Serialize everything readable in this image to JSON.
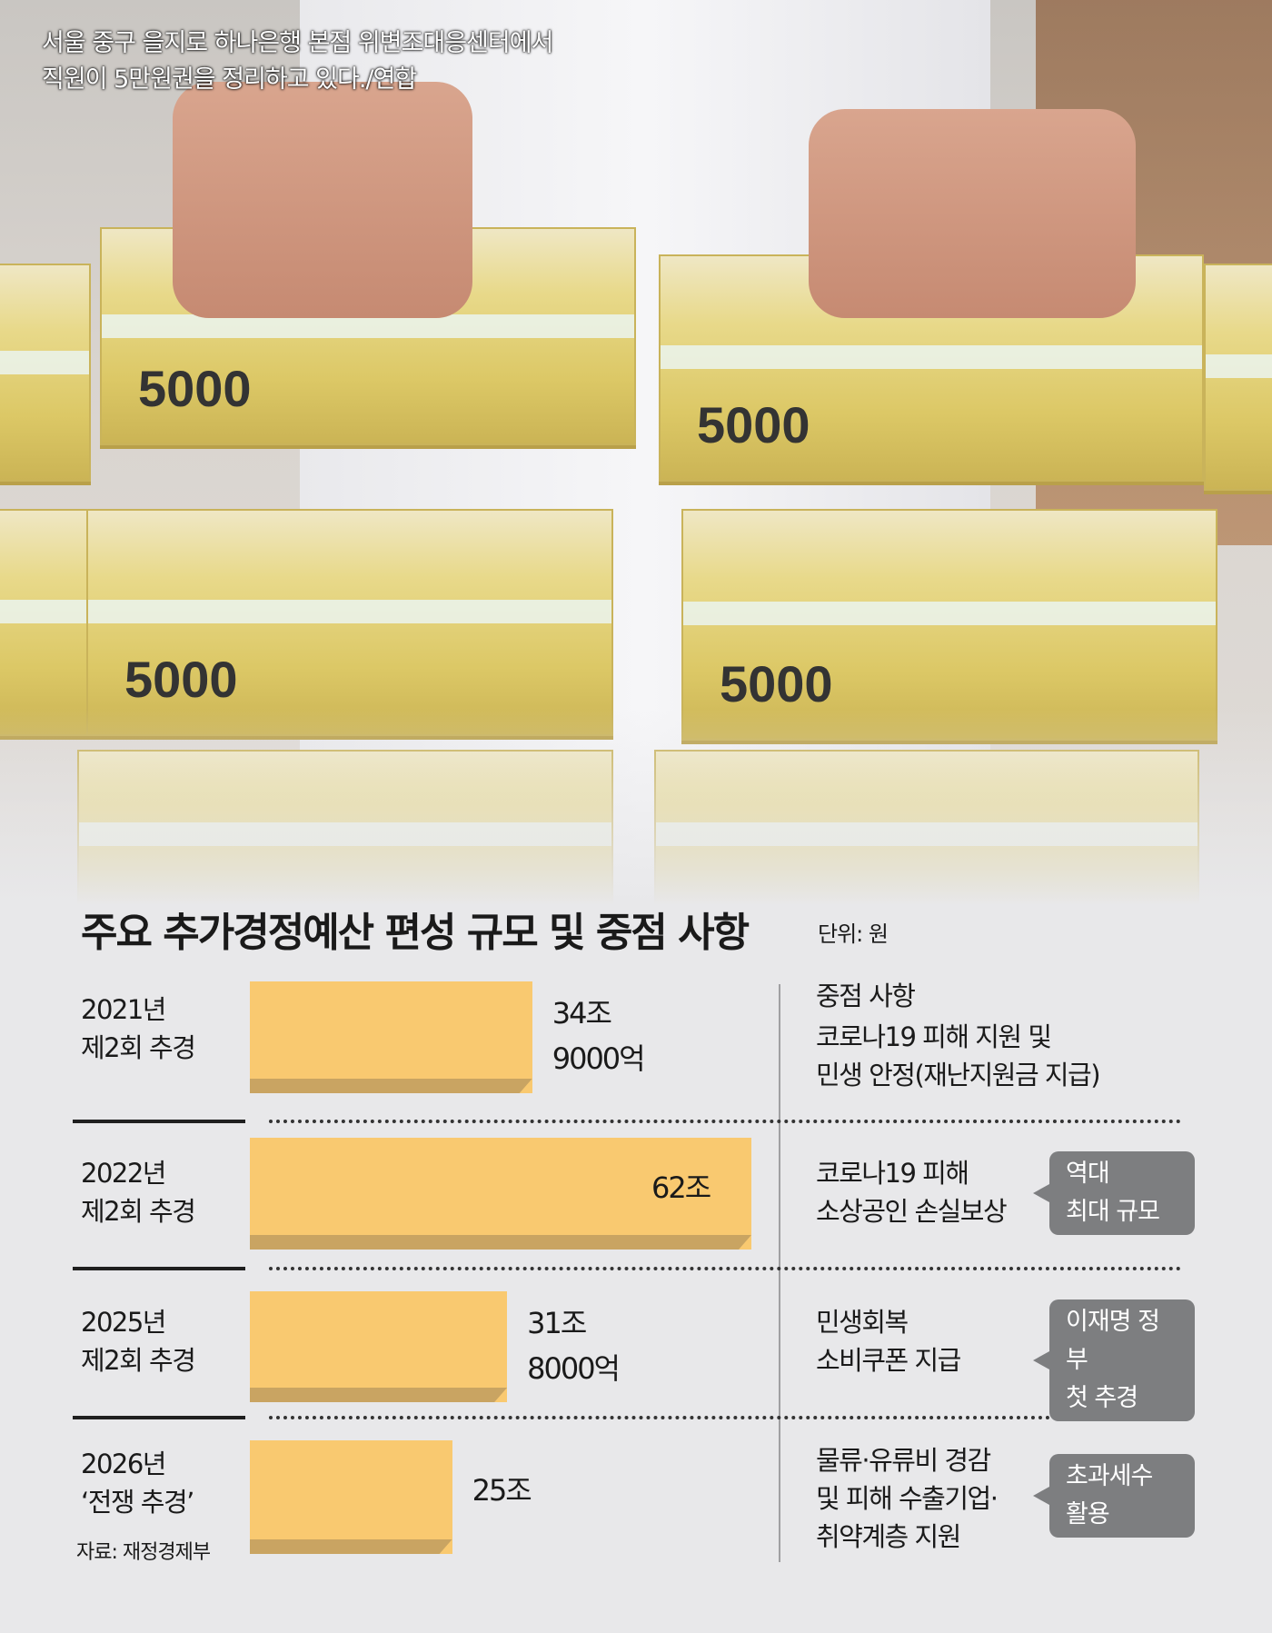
{
  "photo": {
    "caption_lines": [
      "서울 중구 을지로 하나은행 본점 위변조대응센터에서",
      "직원이 5만원권을 정리하고 있다./연합"
    ],
    "bill_label": "5000"
  },
  "chart_data": {
    "type": "bar",
    "orientation": "horizontal",
    "title": "주요 추가경정예산 편성 규모 및 중점 사항",
    "unit": "단위: 원",
    "source": "자료: 재정경제부",
    "notes_header": "중점 사항",
    "categories": [
      {
        "line1": "2021년",
        "line2": "제2회 추경"
      },
      {
        "line1": "2022년",
        "line2": "제2회 추경"
      },
      {
        "line1": "2025년",
        "line2": "제2회 추경"
      },
      {
        "line1": "2026년",
        "line2": "‘전쟁 추경’"
      }
    ],
    "values": [
      34.9,
      62,
      31.8,
      25
    ],
    "value_unit": "조",
    "data_labels": [
      [
        "34조",
        "9000억"
      ],
      [
        "62조"
      ],
      [
        "31조",
        "8000억"
      ],
      [
        "25조"
      ]
    ],
    "notes": [
      {
        "lines": [
          "코로나19 피해 지원 및",
          "민생 안정(재난지원금 지급)"
        ],
        "callout": []
      },
      {
        "lines": [
          "코로나19 피해",
          "소상공인 손실보상"
        ],
        "callout": [
          "역대",
          "최대 규모"
        ]
      },
      {
        "lines": [
          "민생회복",
          "소비쿠폰 지급"
        ],
        "callout": [
          "이재명 정부",
          "첫 추경"
        ]
      },
      {
        "lines": [
          "물류·유류비 경감",
          "및 피해 수출기업·",
          "취약계층 지원"
        ],
        "callout": [
          "초과세수",
          "활용"
        ]
      }
    ],
    "colors": {
      "bar": "#f9c970",
      "bar_shadow": "#c9a462",
      "callout": "#7d7e80",
      "background": "#e8e8ea"
    }
  }
}
